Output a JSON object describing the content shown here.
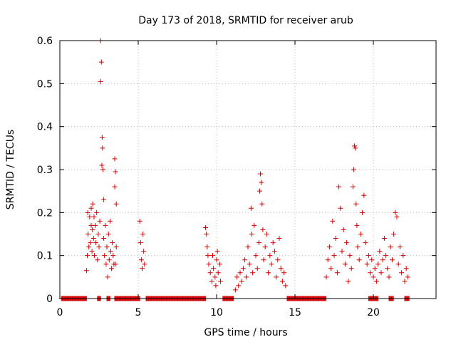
{
  "chart_data": {
    "type": "scatter",
    "title": "Day 173 of 2018, SRMTID for receiver arub",
    "xlabel": "GPS time / hours",
    "ylabel": "SRMTID / TECUs",
    "xlim": [
      0,
      24
    ],
    "ylim": [
      0,
      0.6
    ],
    "x_ticks": [
      0,
      5,
      10,
      15,
      20
    ],
    "y_ticks": [
      0,
      0.1,
      0.2,
      0.3,
      0.4,
      0.5,
      0.6
    ],
    "x_tick_labels": [
      "0",
      "5",
      "10",
      "15",
      "20"
    ],
    "y_tick_labels": [
      "0",
      "0.1",
      "0.2",
      "0.3",
      "0.4",
      "0.5",
      "0.6"
    ],
    "grid": true,
    "marker": "plus",
    "series_color": "#d40000",
    "zero_segments": [
      [
        0.1,
        1.7
      ],
      [
        2.4,
        2.6
      ],
      [
        3.0,
        3.2
      ],
      [
        3.5,
        5.1
      ],
      [
        5.5,
        9.3
      ],
      [
        10.4,
        11.1
      ],
      [
        14.5,
        17.0
      ],
      [
        19.7,
        20.3
      ],
      [
        21.0,
        21.3
      ],
      [
        22.0,
        22.3
      ]
    ],
    "points": [
      [
        1.7,
        0.065
      ],
      [
        1.75,
        0.1
      ],
      [
        1.78,
        0.2
      ],
      [
        1.8,
        0.15
      ],
      [
        1.85,
        0.12
      ],
      [
        1.9,
        0.19
      ],
      [
        1.95,
        0.13
      ],
      [
        2.0,
        0.17
      ],
      [
        2.0,
        0.21
      ],
      [
        2.05,
        0.11
      ],
      [
        2.08,
        0.16
      ],
      [
        2.1,
        0.22
      ],
      [
        2.15,
        0.14
      ],
      [
        2.18,
        0.19
      ],
      [
        2.2,
        0.1
      ],
      [
        2.25,
        0.17
      ],
      [
        2.3,
        0.13
      ],
      [
        2.35,
        0.2
      ],
      [
        2.4,
        0.09
      ],
      [
        2.45,
        0.15
      ],
      [
        2.5,
        0.12
      ],
      [
        2.55,
        0.18
      ],
      [
        2.6,
        0.6
      ],
      [
        2.65,
        0.55
      ],
      [
        2.6,
        0.505
      ],
      [
        2.7,
        0.375
      ],
      [
        2.72,
        0.35
      ],
      [
        2.68,
        0.31
      ],
      [
        2.75,
        0.3
      ],
      [
        2.8,
        0.23
      ],
      [
        2.8,
        0.14
      ],
      [
        2.85,
        0.1
      ],
      [
        2.9,
        0.17
      ],
      [
        2.95,
        0.08
      ],
      [
        3.0,
        0.12
      ],
      [
        3.05,
        0.05
      ],
      [
        3.1,
        0.15
      ],
      [
        3.15,
        0.09
      ],
      [
        3.2,
        0.18
      ],
      [
        3.25,
        0.11
      ],
      [
        3.3,
        0.07
      ],
      [
        3.35,
        0.13
      ],
      [
        3.4,
        0.1
      ],
      [
        3.45,
        0.08
      ],
      [
        3.5,
        0.325
      ],
      [
        3.55,
        0.295
      ],
      [
        3.5,
        0.26
      ],
      [
        3.6,
        0.22
      ],
      [
        3.55,
        0.08
      ],
      [
        3.6,
        0.12
      ],
      [
        5.1,
        0.18
      ],
      [
        5.15,
        0.13
      ],
      [
        5.2,
        0.09
      ],
      [
        5.25,
        0.07
      ],
      [
        5.3,
        0.15
      ],
      [
        5.35,
        0.11
      ],
      [
        5.4,
        0.08
      ],
      [
        9.3,
        0.165
      ],
      [
        9.35,
        0.15
      ],
      [
        9.4,
        0.12
      ],
      [
        9.45,
        0.1
      ],
      [
        9.5,
        0.08
      ],
      [
        9.6,
        0.06
      ],
      [
        9.7,
        0.04
      ],
      [
        9.75,
        0.1
      ],
      [
        9.8,
        0.07
      ],
      [
        9.9,
        0.05
      ],
      [
        9.95,
        0.03
      ],
      [
        10.0,
        0.09
      ],
      [
        10.05,
        0.11
      ],
      [
        10.1,
        0.06
      ],
      [
        10.2,
        0.08
      ],
      [
        10.25,
        0.04
      ],
      [
        11.2,
        0.02
      ],
      [
        11.3,
        0.05
      ],
      [
        11.4,
        0.03
      ],
      [
        11.5,
        0.06
      ],
      [
        11.6,
        0.04
      ],
      [
        11.7,
        0.07
      ],
      [
        11.8,
        0.09
      ],
      [
        11.9,
        0.05
      ],
      [
        12.0,
        0.12
      ],
      [
        12.1,
        0.08
      ],
      [
        12.2,
        0.21
      ],
      [
        12.25,
        0.15
      ],
      [
        12.3,
        0.06
      ],
      [
        12.4,
        0.17
      ],
      [
        12.5,
        0.1
      ],
      [
        12.6,
        0.07
      ],
      [
        12.7,
        0.13
      ],
      [
        12.75,
        0.25
      ],
      [
        12.8,
        0.29
      ],
      [
        12.85,
        0.27
      ],
      [
        12.9,
        0.22
      ],
      [
        12.95,
        0.16
      ],
      [
        13.0,
        0.09
      ],
      [
        13.1,
        0.12
      ],
      [
        13.2,
        0.15
      ],
      [
        13.3,
        0.06
      ],
      [
        13.4,
        0.1
      ],
      [
        13.5,
        0.08
      ],
      [
        13.6,
        0.13
      ],
      [
        13.7,
        0.11
      ],
      [
        13.8,
        0.05
      ],
      [
        13.9,
        0.09
      ],
      [
        14.0,
        0.14
      ],
      [
        14.1,
        0.07
      ],
      [
        14.2,
        0.04
      ],
      [
        14.3,
        0.06
      ],
      [
        14.4,
        0.03
      ],
      [
        17.0,
        0.05
      ],
      [
        17.1,
        0.09
      ],
      [
        17.2,
        0.12
      ],
      [
        17.3,
        0.07
      ],
      [
        17.4,
        0.18
      ],
      [
        17.5,
        0.1
      ],
      [
        17.6,
        0.14
      ],
      [
        17.7,
        0.06
      ],
      [
        17.8,
        0.26
      ],
      [
        17.9,
        0.21
      ],
      [
        18.0,
        0.11
      ],
      [
        18.1,
        0.16
      ],
      [
        18.2,
        0.08
      ],
      [
        18.3,
        0.13
      ],
      [
        18.4,
        0.04
      ],
      [
        18.5,
        0.1
      ],
      [
        18.6,
        0.07
      ],
      [
        18.7,
        0.26
      ],
      [
        18.75,
        0.3
      ],
      [
        18.8,
        0.355
      ],
      [
        18.85,
        0.35
      ],
      [
        18.9,
        0.22
      ],
      [
        18.95,
        0.17
      ],
      [
        19.0,
        0.12
      ],
      [
        19.1,
        0.09
      ],
      [
        19.2,
        0.15
      ],
      [
        19.3,
        0.2
      ],
      [
        19.4,
        0.24
      ],
      [
        19.5,
        0.13
      ],
      [
        19.6,
        0.08
      ],
      [
        19.7,
        0.1
      ],
      [
        19.8,
        0.06
      ],
      [
        19.9,
        0.09
      ],
      [
        20.0,
        0.05
      ],
      [
        20.1,
        0.07
      ],
      [
        20.2,
        0.04
      ],
      [
        20.3,
        0.08
      ],
      [
        20.4,
        0.11
      ],
      [
        20.5,
        0.06
      ],
      [
        20.6,
        0.09
      ],
      [
        20.7,
        0.14
      ],
      [
        20.8,
        0.1
      ],
      [
        20.9,
        0.07
      ],
      [
        21.0,
        0.05
      ],
      [
        21.1,
        0.12
      ],
      [
        21.2,
        0.09
      ],
      [
        21.3,
        0.15
      ],
      [
        21.4,
        0.2
      ],
      [
        21.5,
        0.19
      ],
      [
        21.6,
        0.08
      ],
      [
        21.7,
        0.12
      ],
      [
        21.8,
        0.06
      ],
      [
        21.9,
        0.1
      ],
      [
        22.0,
        0.04
      ],
      [
        22.1,
        0.07
      ],
      [
        22.2,
        0.05
      ]
    ]
  }
}
